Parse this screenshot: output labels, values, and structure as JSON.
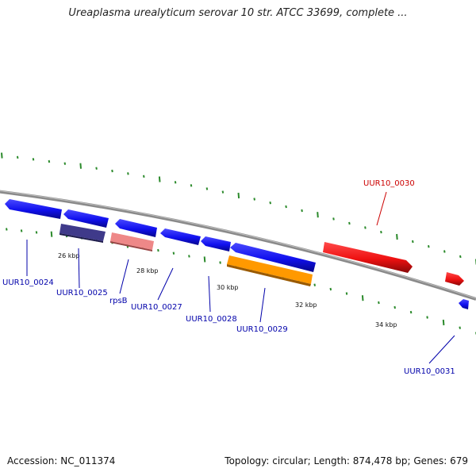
{
  "header": {
    "title": "Ureaplasma urealyticum serovar 10 str. ATCC 33699, complete ..."
  },
  "footer": {
    "accession": "Accession: NC_011374",
    "summary": "Topology: circular; Length: 874,478 bp; Genes: 679"
  },
  "colors": {
    "forward_gene": "#1010ee",
    "forward_gene_dark": "#06068a",
    "highlight_gene": "#ee1111",
    "highlight_gene_dark": "#880808",
    "reverse_gene_navy": "#3f3a8a",
    "reverse_gene_pink": "#ee8888",
    "reverse_gene_orange": "#ff9900",
    "backbone": "#888888",
    "tick": "#2b8a2b",
    "label_blue": "#0000aa",
    "label_red": "#cc0000"
  },
  "scale_labels": [
    "26 kbp",
    "28 kbp",
    "30 kbp",
    "32 kbp",
    "34 kbp"
  ],
  "genes": [
    {
      "id": "UUR10_0024",
      "strand": "forward",
      "color": "forward_gene",
      "label_color": "label_blue"
    },
    {
      "id": "UUR10_0025",
      "strand": "reverse",
      "color": "reverse_gene_navy",
      "label_color": "label_blue"
    },
    {
      "id": "rpsB",
      "strand": "reverse",
      "color": "reverse_gene_pink",
      "label_color": "label_blue"
    },
    {
      "id": "UUR10_0027",
      "strand": "forward",
      "color": "forward_gene",
      "label_color": "label_blue"
    },
    {
      "id": "UUR10_0028",
      "strand": "forward",
      "color": "forward_gene",
      "label_color": "label_blue"
    },
    {
      "id": "UUR10_0029",
      "strand": "reverse",
      "color": "reverse_gene_orange",
      "label_color": "label_blue"
    },
    {
      "id": "UUR10_0030",
      "strand": "forward",
      "color": "highlight_gene",
      "label_color": "label_red"
    },
    {
      "id": "UUR10_0031",
      "strand": "forward",
      "color": "forward_gene",
      "label_color": "label_blue"
    }
  ]
}
